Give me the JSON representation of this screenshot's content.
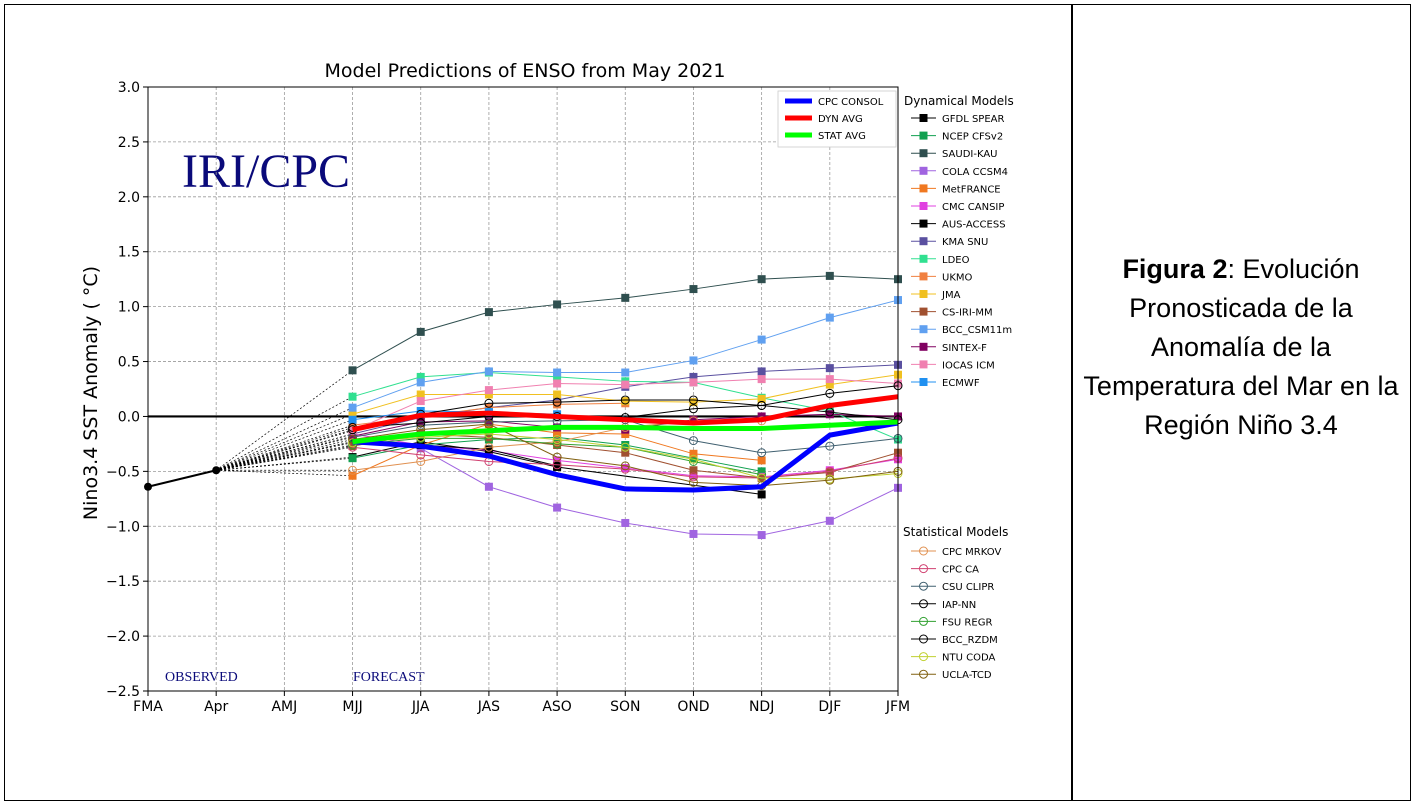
{
  "caption": {
    "label": "Figura 2",
    "text": ": Evolución Pronosticada de la Anomalía de la Temperatura del Mar en la Región Niño 3.4"
  },
  "chart_data": {
    "type": "line",
    "title": "Model Predictions of ENSO from May 2021",
    "ylabel": "Nino3.4 SST Anomaly ( °C)",
    "xlabel": "",
    "categories": [
      "FMA",
      "Apr",
      "AMJ",
      "MJJ",
      "JJA",
      "JAS",
      "ASO",
      "SON",
      "OND",
      "NDJ",
      "DJF",
      "JFM"
    ],
    "ylim": [
      -2.5,
      3.0
    ],
    "yticks": [
      "3.0",
      "2.5",
      "2.0",
      "1.5",
      "1.0",
      "0.5",
      "0.0",
      "−0.5",
      "−1.0",
      "−1.5",
      "−2.0",
      "−2.5"
    ],
    "ytick_values": [
      3.0,
      2.5,
      2.0,
      1.5,
      1.0,
      0.5,
      0.0,
      -0.5,
      -1.0,
      -1.5,
      -2.0,
      -2.5
    ],
    "grid": true,
    "watermark": "IRI/CPC",
    "observed_label": "OBSERVED",
    "forecast_label": "FORECAST",
    "observed": {
      "x": [
        "FMA",
        "Apr"
      ],
      "values": [
        -0.64,
        -0.49
      ]
    },
    "consensus_legend": [
      {
        "name": "CPC CONSOL",
        "color": "#0000ff"
      },
      {
        "name": "DYN AVG",
        "color": "#ff0000"
      },
      {
        "name": "STAT AVG",
        "color": "#00ff00"
      }
    ],
    "consensus": [
      {
        "name": "CPC CONSOL",
        "color": "#0000ff",
        "values": [
          -0.23,
          -0.27,
          -0.36,
          -0.53,
          -0.66,
          -0.67,
          -0.64,
          -0.17,
          -0.06
        ]
      },
      {
        "name": "DYN AVG",
        "color": "#ff0000",
        "values": [
          -0.12,
          0.01,
          0.03,
          0.0,
          -0.03,
          -0.06,
          -0.03,
          0.1,
          0.18
        ]
      },
      {
        "name": "STAT AVG",
        "color": "#00ff00",
        "values": [
          -0.23,
          -0.16,
          -0.13,
          -0.1,
          -0.1,
          -0.11,
          -0.11,
          -0.08,
          -0.05
        ]
      }
    ],
    "dynamical_title": "Dynamical Models",
    "dynamical": [
      {
        "name": "GFDL SPEAR",
        "color": "#000000",
        "values": [
          -0.37,
          -0.23,
          -0.32,
          -0.46,
          null,
          null,
          -0.71,
          null,
          null
        ]
      },
      {
        "name": "NCEP CFSv2",
        "color": "#11a050",
        "values": [
          -0.38,
          -0.26,
          -0.21,
          -0.19,
          -0.26,
          -0.38,
          -0.5,
          null,
          null
        ]
      },
      {
        "name": "SAUDI-KAU",
        "color": "#2f4f4f",
        "values": [
          0.42,
          0.77,
          0.95,
          1.02,
          1.08,
          1.16,
          1.25,
          1.28,
          1.25
        ]
      },
      {
        "name": "COLA CCSM4",
        "color": "#a064e0",
        "values": [
          -0.23,
          -0.29,
          -0.64,
          -0.83,
          -0.97,
          -1.07,
          -1.08,
          -0.95,
          -0.65
        ]
      },
      {
        "name": "MetFRANCE",
        "color": "#f07820",
        "values": [
          -0.54,
          -0.26,
          -0.07,
          -0.15,
          -0.16,
          -0.34,
          -0.4,
          null,
          null
        ]
      },
      {
        "name": "CMC CANSIP",
        "color": "#e040e0",
        "values": [
          -0.16,
          -0.26,
          -0.31,
          -0.4,
          -0.47,
          -0.54,
          -0.55,
          -0.49,
          -0.39
        ]
      },
      {
        "name": "AUS-ACCESS",
        "color": "#000000",
        "values": [
          -0.23,
          -0.26,
          -0.3,
          -0.45,
          null,
          null,
          null,
          null,
          null
        ]
      },
      {
        "name": "KMA SNU",
        "color": "#5a50a0",
        "values": [
          -0.16,
          -0.01,
          0.08,
          0.15,
          0.27,
          0.36,
          0.41,
          0.44,
          0.47
        ]
      },
      {
        "name": "LDEO",
        "color": "#30e090",
        "values": [
          0.18,
          0.36,
          0.4,
          0.36,
          0.32,
          0.31,
          0.17,
          0.05,
          -0.21
        ]
      },
      {
        "name": "UKMO",
        "color": "#f08040",
        "values": [
          -0.08,
          0.0,
          0.08,
          0.11,
          0.12,
          null,
          null,
          null,
          null
        ]
      },
      {
        "name": "JMA",
        "color": "#f0c020",
        "values": [
          0.02,
          0.2,
          0.2,
          0.2,
          0.14,
          0.13,
          0.16,
          0.29,
          0.38
        ]
      },
      {
        "name": "CS-IRI-MM",
        "color": "#a05030",
        "values": [
          -0.27,
          -0.16,
          -0.19,
          -0.26,
          -0.33,
          -0.49,
          -0.56,
          -0.51,
          -0.33
        ]
      },
      {
        "name": "BCC_CSM11m",
        "color": "#60a0f0",
        "values": [
          0.08,
          0.31,
          0.41,
          0.4,
          0.4,
          0.51,
          0.7,
          0.9,
          1.06
        ]
      },
      {
        "name": "SINTEX-F",
        "color": "#800060",
        "values": [
          -0.18,
          -0.05,
          -0.04,
          -0.1,
          -0.12,
          -0.03,
          0.0,
          0.02,
          0.0
        ]
      },
      {
        "name": "IOCAS ICM",
        "color": "#f080b0",
        "values": [
          -0.13,
          0.14,
          0.24,
          0.3,
          0.29,
          0.31,
          0.34,
          0.34,
          0.3
        ]
      },
      {
        "name": "ECMWF",
        "color": "#2090f0",
        "values": [
          -0.03,
          0.05,
          0.04,
          0.02,
          null,
          null,
          null,
          null,
          null
        ]
      }
    ],
    "statistical_title": "Statistical Models",
    "statistical": [
      {
        "name": "CPC MRKOV",
        "color": "#e09050",
        "values": [
          -0.49,
          -0.41,
          -0.28,
          -0.23,
          -0.1,
          -0.04,
          -0.04,
          null,
          null
        ]
      },
      {
        "name": "CPC CA",
        "color": "#d04070",
        "values": [
          -0.28,
          -0.35,
          -0.41,
          -0.44,
          -0.48,
          -0.55,
          -0.56,
          -0.5,
          -0.38
        ]
      },
      {
        "name": "CSU CLIPR",
        "color": "#406070",
        "values": [
          -0.19,
          -0.08,
          -0.05,
          -0.04,
          -0.03,
          -0.22,
          -0.33,
          -0.27,
          -0.2
        ]
      },
      {
        "name": "IAP-NN",
        "color": "#000000",
        "values": [
          -0.12,
          0.02,
          0.12,
          0.13,
          0.15,
          0.15,
          0.1,
          0.21,
          0.28
        ]
      },
      {
        "name": "FSU REGR",
        "color": "#30a030",
        "values": [
          -0.26,
          -0.2,
          -0.2,
          -0.25,
          -0.28,
          -0.41,
          -0.53,
          null,
          null
        ]
      },
      {
        "name": "BCC_RZDM",
        "color": "#000000",
        "values": [
          -0.1,
          -0.06,
          0.0,
          0.0,
          -0.01,
          0.07,
          0.1,
          0.04,
          -0.03
        ]
      },
      {
        "name": "NTU CODA",
        "color": "#c0d030",
        "values": [
          -0.24,
          -0.19,
          -0.16,
          -0.21,
          -0.28,
          -0.39,
          -0.56,
          -0.57,
          -0.52
        ]
      },
      {
        "name": "UCLA-TCD",
        "color": "#806010",
        "values": [
          -0.21,
          -0.12,
          -0.07,
          -0.37,
          -0.45,
          -0.6,
          -0.63,
          -0.58,
          -0.5
        ]
      }
    ]
  }
}
